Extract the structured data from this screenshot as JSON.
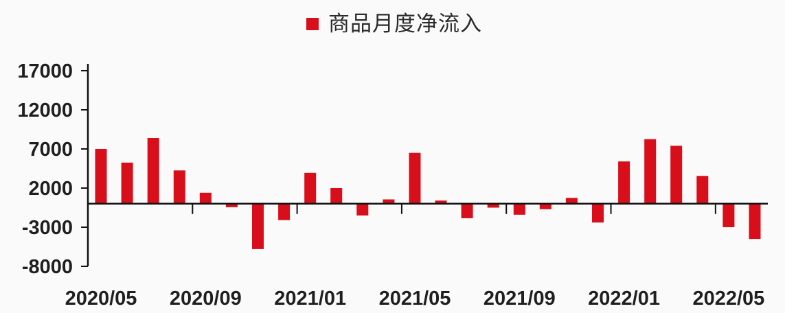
{
  "legend": {
    "label": "商品月度净流入",
    "swatch_color": "#D80E1A"
  },
  "chart_data": {
    "type": "bar",
    "title": "商品月度净流入",
    "categories": [
      "2020/05",
      "2020/06",
      "2020/07",
      "2020/08",
      "2020/09",
      "2020/10",
      "2020/11",
      "2020/12",
      "2021/01",
      "2021/02",
      "2021/03",
      "2021/04",
      "2021/05",
      "2021/06",
      "2021/07",
      "2021/08",
      "2021/09",
      "2021/10",
      "2021/11",
      "2021/12",
      "2022/01",
      "2022/02",
      "2022/03",
      "2022/04",
      "2022/05",
      "2022/06"
    ],
    "values": [
      7000,
      5250,
      8400,
      4250,
      1400,
      -450,
      -5800,
      -2100,
      3950,
      2000,
      -1500,
      550,
      6500,
      400,
      -1850,
      -500,
      -1400,
      -700,
      750,
      -2400,
      5400,
      8250,
      7400,
      3550,
      -3000,
      -4500
    ],
    "series_name": "商品月度净流入",
    "xlabel": "",
    "ylabel": "",
    "ylim": [
      -8000,
      17000
    ],
    "y_ticks": [
      17000,
      12000,
      7000,
      2000,
      -3000,
      -8000
    ],
    "x_tick_labels": [
      "2020/05",
      "2020/09",
      "2021/01",
      "2021/05",
      "2021/09",
      "2022/01",
      "2022/05"
    ],
    "x_tick_indices": [
      0,
      4,
      8,
      12,
      16,
      20,
      24
    ],
    "bar_color": "#D80E1A",
    "axis_color": "#111111",
    "label_color": "#1F1F1F",
    "background_color": "#FAFAFA",
    "grid": false,
    "legend_position": "top-center"
  }
}
